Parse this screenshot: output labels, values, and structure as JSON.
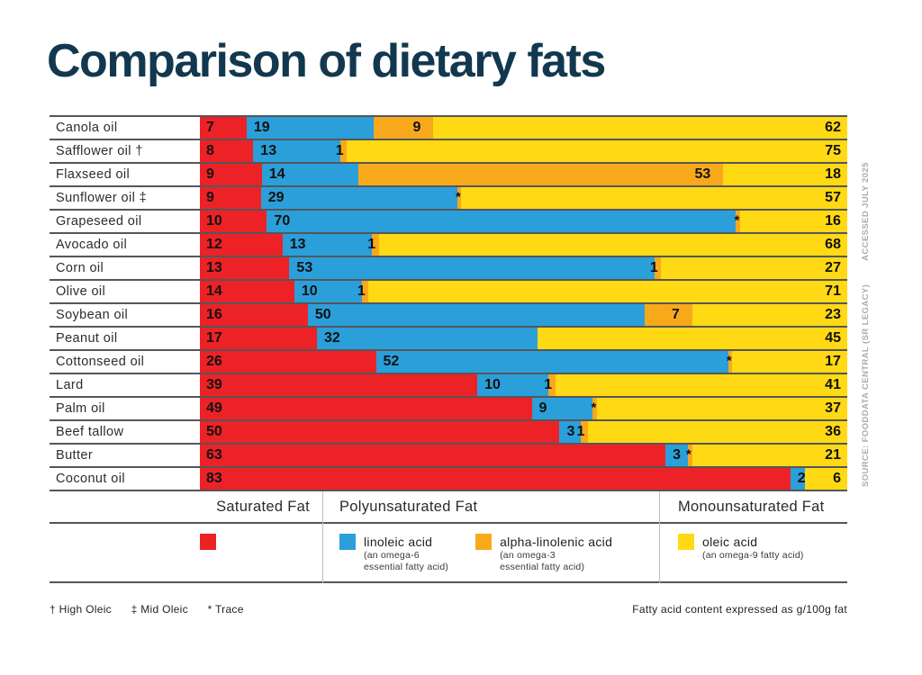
{
  "title": "Comparison of dietary fats",
  "colors": {
    "saturated": "#EC2227",
    "linoleic": "#2B9FD9",
    "alpha_linolenic": "#F8A91B",
    "oleic": "#FFD913"
  },
  "chart_data": {
    "type": "bar",
    "orientation": "horizontal-stacked",
    "unit": "g/100g fat",
    "series_names": [
      "saturated fat",
      "linoleic acid",
      "alpha-linolenic acid",
      "oleic acid"
    ],
    "note": "each row normalized to its own total; 'trace' = tiny sliver marked *",
    "rows": [
      {
        "label": "Canola oil",
        "values": {
          "saturated": 7,
          "linoleic": 19,
          "alpha_linolenic": 9,
          "oleic": 62
        }
      },
      {
        "label": "Safflower oil †",
        "values": {
          "saturated": 8,
          "linoleic": 13,
          "alpha_linolenic": 1,
          "oleic": 75
        }
      },
      {
        "label": "Flaxseed oil",
        "values": {
          "saturated": 9,
          "linoleic": 14,
          "alpha_linolenic": 53,
          "oleic": 18
        }
      },
      {
        "label": "Sunflower oil ‡",
        "values": {
          "saturated": 9,
          "linoleic": 29,
          "alpha_linolenic": "trace",
          "oleic": 57
        }
      },
      {
        "label": "Grapeseed oil",
        "values": {
          "saturated": 10,
          "linoleic": 70,
          "alpha_linolenic": "trace",
          "oleic": 16
        }
      },
      {
        "label": "Avocado oil",
        "values": {
          "saturated": 12,
          "linoleic": 13,
          "alpha_linolenic": 1,
          "oleic": 68
        }
      },
      {
        "label": "Corn oil",
        "values": {
          "saturated": 13,
          "linoleic": 53,
          "alpha_linolenic": 1,
          "oleic": 27
        }
      },
      {
        "label": "Olive oil",
        "values": {
          "saturated": 14,
          "linoleic": 10,
          "alpha_linolenic": 1,
          "oleic": 71
        }
      },
      {
        "label": "Soybean oil",
        "values": {
          "saturated": 16,
          "linoleic": 50,
          "alpha_linolenic": 7,
          "oleic": 23
        }
      },
      {
        "label": "Peanut oil",
        "values": {
          "saturated": 17,
          "linoleic": 32,
          "alpha_linolenic": null,
          "oleic": 45
        }
      },
      {
        "label": "Cottonseed oil",
        "values": {
          "saturated": 26,
          "linoleic": 52,
          "alpha_linolenic": "trace",
          "oleic": 17
        }
      },
      {
        "label": "Lard",
        "values": {
          "saturated": 39,
          "linoleic": 10,
          "alpha_linolenic": 1,
          "oleic": 41
        }
      },
      {
        "label": "Palm oil",
        "values": {
          "saturated": 49,
          "linoleic": 9,
          "alpha_linolenic": "trace",
          "oleic": 37
        }
      },
      {
        "label": "Beef tallow",
        "values": {
          "saturated": 50,
          "linoleic": 3,
          "alpha_linolenic": 1,
          "oleic": 36
        }
      },
      {
        "label": "Butter",
        "values": {
          "saturated": 63,
          "linoleic": 3,
          "alpha_linolenic": "trace",
          "oleic": 21
        }
      },
      {
        "label": "Coconut oil",
        "values": {
          "saturated": 83,
          "linoleic": 2,
          "alpha_linolenic": null,
          "oleic": 6
        }
      }
    ]
  },
  "legend": {
    "saturated": {
      "header": "Saturated Fat"
    },
    "poly": {
      "header": "Polyunsaturated Fat",
      "entries": [
        {
          "name": "linoleic acid",
          "sub1": "(an omega-6",
          "sub2": "essential fatty acid)"
        },
        {
          "name": "alpha-linolenic acid",
          "sub1": "(an omega-3",
          "sub2": "essential fatty acid)"
        }
      ]
    },
    "mono": {
      "header": "Monounsaturated Fat",
      "entries": [
        {
          "name": "oleic acid",
          "sub1": "(an omega-9 fatty acid)"
        }
      ]
    }
  },
  "footnotes": {
    "dagger": "† High Oleic",
    "double_dagger": "‡ Mid Oleic",
    "asterisk": "* Trace",
    "right": "Fatty acid content expressed as g/100g fat"
  },
  "source": {
    "line1": "SOURCE: FOODDATA CENTRAL (SR LEGACY)",
    "line2": "ACCESSED JULY 2025"
  }
}
